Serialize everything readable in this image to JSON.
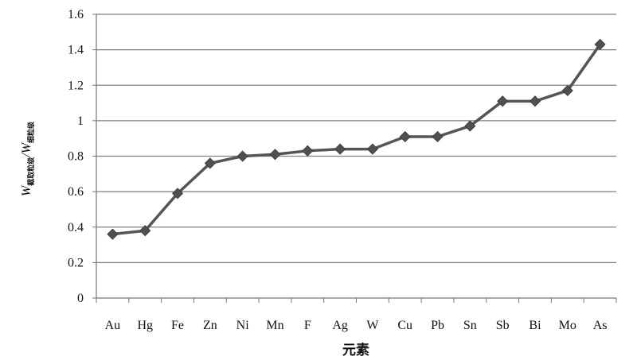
{
  "chart_data": {
    "type": "line",
    "categories": [
      "Au",
      "Hg",
      "Fe",
      "Zn",
      "Ni",
      "Mn",
      "F",
      "Ag",
      "W",
      "Cu",
      "Pb",
      "Sn",
      "Sb",
      "Bi",
      "Mo",
      "As"
    ],
    "series": [
      {
        "values": [
          0.36,
          0.38,
          0.59,
          0.76,
          0.8,
          0.81,
          0.83,
          0.84,
          0.84,
          0.91,
          0.91,
          0.97,
          1.11,
          1.11,
          1.17,
          1.43
        ]
      }
    ],
    "xlabel": "元素",
    "ylabel": {
      "main_w1": "W",
      "sub1": "截取粒级",
      "slash": "/",
      "main_w2": "W",
      "sub2": "细粒级"
    },
    "ylim": [
      0,
      1.6
    ],
    "yticks": [
      "0",
      "0.2",
      "0.4",
      "0.6",
      "0.8",
      "1",
      "1.2",
      "1.4",
      "1.6"
    ],
    "grid": true,
    "colors": {
      "line": "#555555",
      "marker": "#505050",
      "grid": "#7f7f7f",
      "axis": "#777777"
    }
  }
}
